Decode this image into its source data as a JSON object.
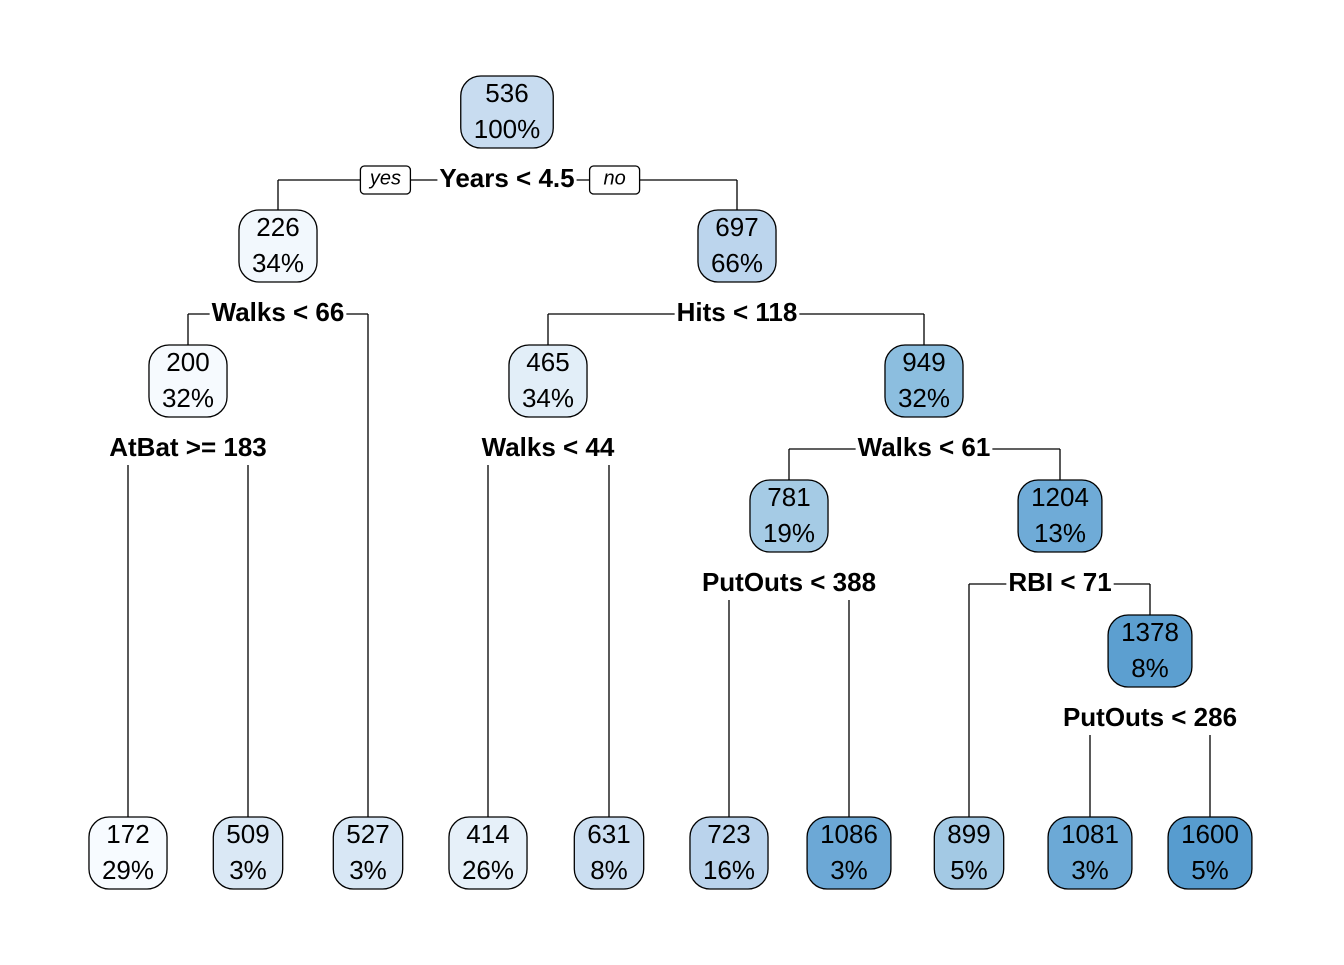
{
  "yes_label": "yes",
  "no_label": "no",
  "nodes": [
    {
      "value": "536",
      "percent": "100%",
      "split": "Years < 4.5"
    },
    {
      "value": "226",
      "percent": "34%",
      "split": "Walks < 66"
    },
    {
      "value": "697",
      "percent": "66%",
      "split": "Hits < 118"
    },
    {
      "value": "200",
      "percent": "32%",
      "split": "AtBat >= 183"
    },
    {
      "value": "465",
      "percent": "34%",
      "split": "Walks < 44"
    },
    {
      "value": "949",
      "percent": "32%",
      "split": "Walks < 61"
    },
    {
      "value": "781",
      "percent": "19%",
      "split": "PutOuts < 388"
    },
    {
      "value": "1204",
      "percent": "13%",
      "split": "RBI < 71"
    },
    {
      "value": "1378",
      "percent": "8%",
      "split": "PutOuts < 286"
    },
    {
      "value": "172",
      "percent": "29%"
    },
    {
      "value": "509",
      "percent": "3%"
    },
    {
      "value": "527",
      "percent": "3%"
    },
    {
      "value": "414",
      "percent": "26%"
    },
    {
      "value": "631",
      "percent": "8%"
    },
    {
      "value": "723",
      "percent": "16%"
    },
    {
      "value": "1086",
      "percent": "3%"
    },
    {
      "value": "899",
      "percent": "5%"
    },
    {
      "value": "1081",
      "percent": "3%"
    },
    {
      "value": "1600",
      "percent": "5%"
    }
  ]
}
